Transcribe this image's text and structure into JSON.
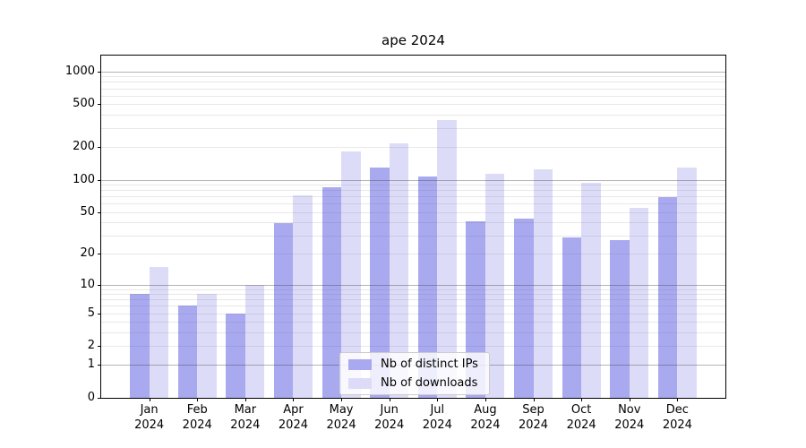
{
  "chart_data": {
    "type": "bar",
    "title": "ape 2024",
    "categories": [
      {
        "month": "Jan",
        "year": "2024"
      },
      {
        "month": "Feb",
        "year": "2024"
      },
      {
        "month": "Mar",
        "year": "2024"
      },
      {
        "month": "Apr",
        "year": "2024"
      },
      {
        "month": "May",
        "year": "2024"
      },
      {
        "month": "Jun",
        "year": "2024"
      },
      {
        "month": "Jul",
        "year": "2024"
      },
      {
        "month": "Aug",
        "year": "2024"
      },
      {
        "month": "Sep",
        "year": "2024"
      },
      {
        "month": "Oct",
        "year": "2024"
      },
      {
        "month": "Nov",
        "year": "2024"
      },
      {
        "month": "Dec",
        "year": "2024"
      }
    ],
    "series": [
      {
        "name": "Nb of distinct IPs",
        "color": "#a9a9f0",
        "values": [
          8,
          6,
          5,
          39,
          85,
          130,
          108,
          41,
          43,
          29,
          27,
          69
        ]
      },
      {
        "name": "Nb of downloads",
        "color": "#dcdcf8",
        "values": [
          15,
          8,
          10,
          72,
          183,
          218,
          358,
          114,
          125,
          93,
          55,
          130
        ]
      }
    ],
    "yscale": "log1p",
    "ylim": [
      0,
      1400
    ],
    "yticks": [
      0,
      1,
      2,
      5,
      10,
      20,
      50,
      100,
      200,
      500,
      1000
    ],
    "ytick_major_gridlines": [
      1,
      10,
      100,
      1000
    ],
    "grid": true,
    "legend_position": "lower-center",
    "xlabel": "",
    "ylabel": ""
  },
  "colors": {
    "bar_distinct_ips": "#a9a9f0",
    "bar_downloads": "#dcdcf8",
    "grid_minor": "#e8e8e8",
    "grid_major": "#b4b4b4",
    "axis_spine": "#000000",
    "legend_border": "#cccccc",
    "background": "#ffffff"
  }
}
